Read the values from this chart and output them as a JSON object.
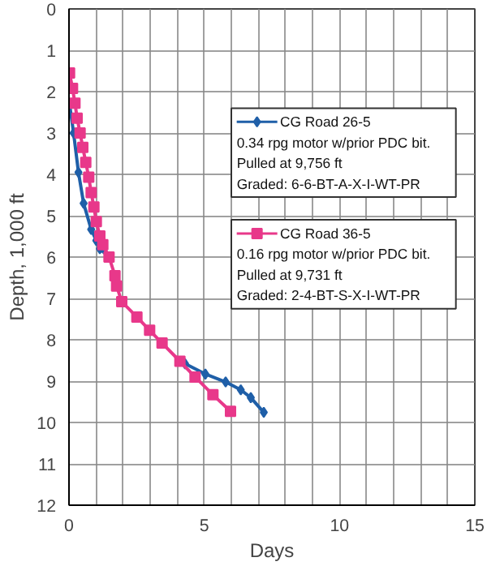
{
  "chart_data": {
    "type": "line",
    "xlabel": "Days",
    "ylabel": "Depth, 1,000 ft",
    "xlim": [
      0,
      15
    ],
    "xticks": [
      0,
      5,
      10,
      15
    ],
    "ylim": [
      12,
      0
    ],
    "yticks": [
      0,
      1,
      2,
      3,
      4,
      5,
      6,
      7,
      8,
      9,
      10,
      11,
      12
    ],
    "grid": true,
    "legend": "right",
    "series": [
      {
        "name": "CG Road 26-5",
        "color": "#1f5fa8",
        "marker": "diamond",
        "x": [
          0.02,
          0.17,
          0.35,
          0.54,
          0.82,
          1.01,
          1.14,
          1.48,
          1.7,
          1.76,
          1.95,
          2.51,
          2.98,
          3.44,
          4.1,
          4.29,
          5.04,
          5.79,
          6.35,
          6.72,
          7.2
        ],
        "values": [
          2.3,
          3.0,
          3.95,
          4.7,
          5.33,
          5.6,
          5.8,
          6.0,
          null,
          null,
          null,
          null,
          null,
          null,
          null,
          8.58,
          8.83,
          9.02,
          9.21,
          9.4,
          9.756
        ]
      },
      {
        "name": "CG Road 36-5",
        "color": "#e8388a",
        "marker": "square",
        "x": [
          0.02,
          0.13,
          0.22,
          0.3,
          0.41,
          0.51,
          0.62,
          0.73,
          0.82,
          0.92,
          1.01,
          1.14,
          1.25,
          1.48,
          1.7,
          1.76,
          1.95,
          2.51,
          2.98,
          3.44,
          4.1,
          4.66,
          5.32,
          5.97
        ],
        "values": [
          1.55,
          1.92,
          2.28,
          2.64,
          3.0,
          3.35,
          3.71,
          4.07,
          4.44,
          4.79,
          5.14,
          5.49,
          5.7,
          6.0,
          6.45,
          6.7,
          7.08,
          7.45,
          7.77,
          8.08,
          8.52,
          8.9,
          9.33,
          9.731
        ]
      }
    ],
    "annotations": [
      "0.34 rpg motor w/prior PDC bit.",
      "Pulled at 9,756 ft",
      "Graded: 6-6-BT-A-X-I-WT-PR",
      "0.16 rpg motor w/prior PDC bit.",
      "Pulled at 9,731 ft",
      "Graded: 2-4-BT-S-X-I-WT-PR"
    ]
  }
}
